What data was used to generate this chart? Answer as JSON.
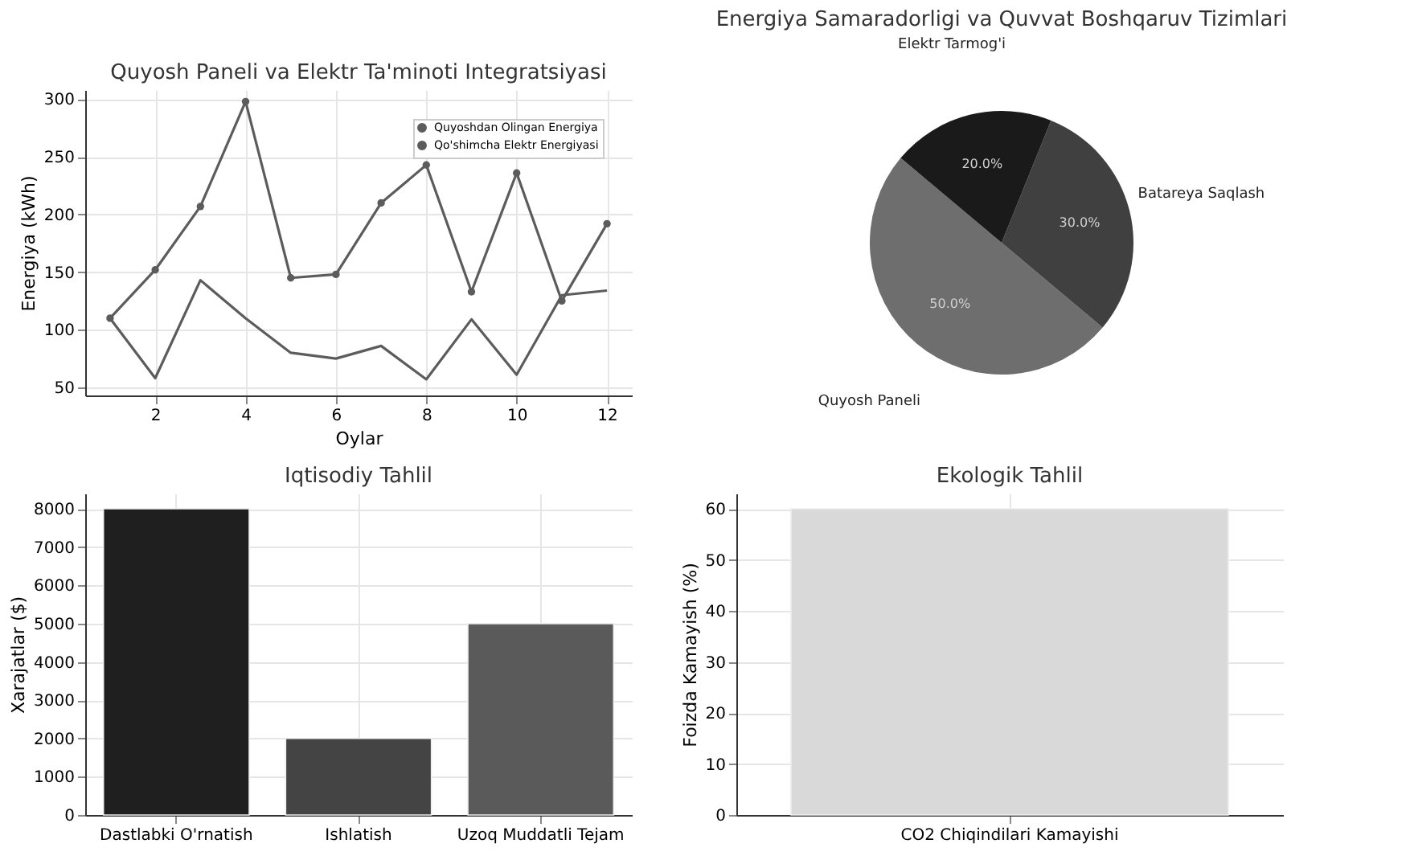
{
  "chart_data": [
    {
      "type": "line",
      "title": "Quyosh Paneli va Elektr Ta'minoti Integratsiyasi",
      "xlabel": "Oylar",
      "ylabel": "Energiya (kWh)",
      "x": [
        1,
        2,
        3,
        4,
        5,
        6,
        7,
        8,
        9,
        10,
        11,
        12
      ],
      "series": [
        {
          "name": "Quyoshdan Olingan Energiya",
          "color": "#5c5c5c",
          "marker": "circle",
          "values": [
            110,
            152,
            207,
            298,
            145,
            148,
            210,
            243,
            133,
            236,
            125,
            192
          ]
        },
        {
          "name": "Qo'shimcha Elektr Energiyasi",
          "color": "#5c5c5c",
          "marker": "none",
          "values": [
            110,
            58,
            143,
            110,
            80,
            75,
            86,
            57,
            109,
            61,
            130,
            134
          ]
        }
      ],
      "xlim": [
        0.45,
        12.55
      ],
      "xticks": [
        2,
        4,
        6,
        8,
        10,
        12
      ],
      "ylim": [
        43,
        308
      ],
      "yticks": [
        50,
        100,
        150,
        200,
        250,
        300
      ],
      "grid": true,
      "legend": "top right"
    },
    {
      "type": "pie",
      "title": "Energiya Samaradorligi va Quvvat Boshqaruv Tizimlari",
      "categories": [
        "Quyosh Paneli",
        "Batareya Saqlash",
        "Elektr Tarmog'i"
      ],
      "values": [
        50,
        30,
        20
      ],
      "colors": [
        "#6e6e6e",
        "#404040",
        "#1a1a1a"
      ],
      "value_labels": [
        "50.0%",
        "30.0%",
        "20.0%"
      ]
    },
    {
      "type": "bar",
      "title": "Iqtisodiy Tahlil",
      "ylabel": "Xarajatlar ($)",
      "categories": [
        "Dastlabki O'rnatish",
        "Ishlatish",
        "Uzoq Muddatli Tejam"
      ],
      "values": [
        8000,
        2000,
        5000
      ],
      "colors": [
        "#1f1f1f",
        "#444444",
        "#5a5a5a"
      ],
      "ylim": [
        0,
        8400
      ],
      "yticks": [
        0,
        1000,
        2000,
        3000,
        4000,
        5000,
        6000,
        7000,
        8000
      ],
      "grid": true
    },
    {
      "type": "bar",
      "title": "Ekologik Tahlil",
      "ylabel": "Foizda Kamayish (%)",
      "categories": [
        "CO2 Chiqindilari Kamayishi"
      ],
      "values": [
        60
      ],
      "colors": [
        "#d9d9d9"
      ],
      "ylim": [
        0,
        63
      ],
      "yticks": [
        0,
        10,
        20,
        30,
        40,
        50,
        60
      ],
      "grid": true
    }
  ]
}
